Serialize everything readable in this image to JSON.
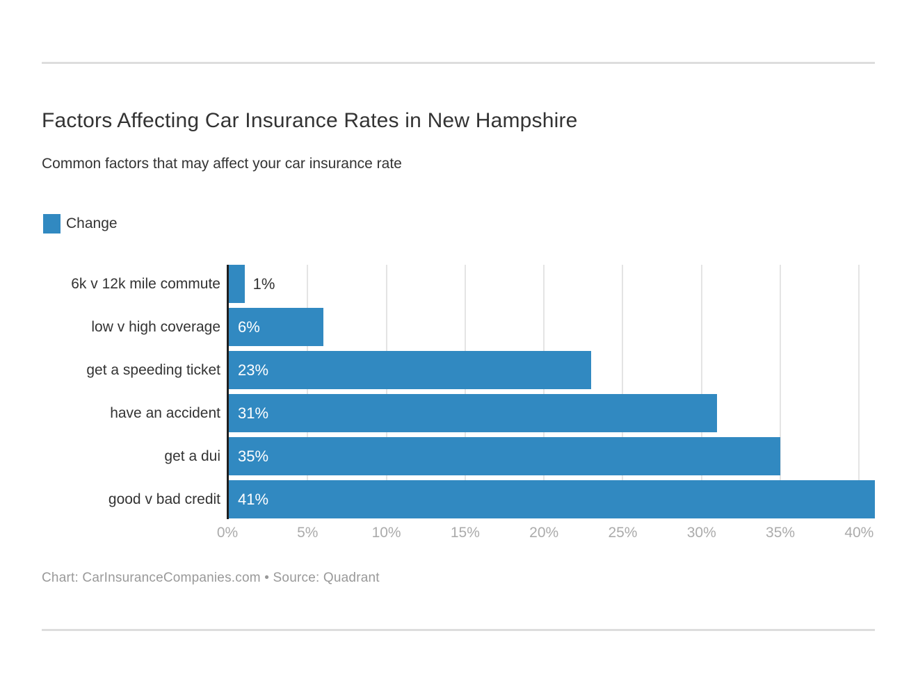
{
  "header": {
    "title": "Factors Affecting Car Insurance Rates in New Hampshire",
    "subtitle": "Common factors that may affect your car insurance rate"
  },
  "legend": {
    "label": "Change",
    "swatch_color": "#3189c1"
  },
  "chart_data": {
    "type": "bar",
    "orientation": "horizontal",
    "title": "Factors Affecting Car Insurance Rates in New Hampshire",
    "subtitle": "Common factors that may affect your car insurance rate",
    "series_name": "Change",
    "categories": [
      "6k v 12k mile commute",
      "low v high coverage",
      "get a speeding ticket",
      "have an accident",
      "get a dui",
      "good v bad credit"
    ],
    "values": [
      1,
      6,
      23,
      31,
      35,
      41
    ],
    "value_labels": [
      "1%",
      "6%",
      "23%",
      "31%",
      "35%",
      "41%"
    ],
    "x_ticks": [
      "0%",
      "5%",
      "10%",
      "15%",
      "20%",
      "25%",
      "30%",
      "35%",
      "40%"
    ],
    "x_tick_values": [
      0,
      5,
      10,
      15,
      20,
      25,
      30,
      35,
      40
    ],
    "xlim": [
      0,
      41
    ],
    "grid": true,
    "legend_position": "top-left",
    "bar_color": "#3189c1",
    "axis_line_color": "#1e1e1e",
    "gridline_color": "#e4e4e4",
    "tick_label_color": "#ababab"
  },
  "footer": {
    "text": "Chart: CarInsuranceCompanies.com • Source: Quadrant"
  }
}
